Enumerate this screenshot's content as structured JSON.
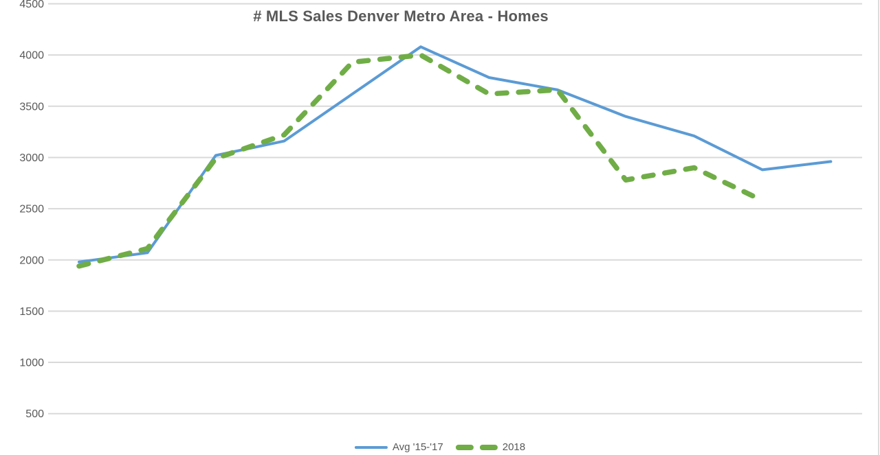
{
  "chart_data": {
    "type": "line",
    "title": "# MLS Sales Denver Metro Area - Homes",
    "categories": [
      1,
      2,
      3,
      4,
      5,
      6,
      7,
      8,
      9,
      10,
      11,
      12
    ],
    "x_axis_labels_visible": false,
    "series": [
      {
        "name": "Avg '15-'17",
        "color": "#5B9BD5",
        "style": "solid",
        "values": [
          1980,
          2070,
          3020,
          3160,
          3620,
          4080,
          3780,
          3660,
          3400,
          3210,
          2880,
          2960
        ]
      },
      {
        "name": "2018",
        "color": "#70AD47",
        "style": "dashed",
        "values": [
          1940,
          2110,
          2990,
          3220,
          3930,
          4000,
          3620,
          3660,
          2780,
          2900,
          2580
        ]
      }
    ],
    "y_axis": {
      "tick_labels": [
        "4500",
        "4000",
        "3500",
        "3000",
        "2500",
        "2000",
        "1500",
        "1000",
        "500"
      ],
      "tick_interval": 500,
      "min_visible": 500,
      "max_visible": 4500
    },
    "gridlines": true,
    "legend_position": "bottom"
  },
  "colors": {
    "background": "#ffffff",
    "gridline": "#d9d9d9",
    "axis_text": "#595959",
    "title_text": "#595959",
    "series_blue": "#5B9BD5",
    "series_green": "#70AD47"
  }
}
